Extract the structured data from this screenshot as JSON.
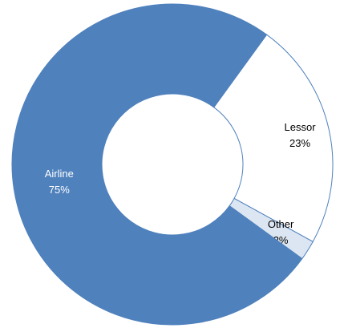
{
  "chart_data": {
    "type": "donut",
    "categories": [
      "Lessor",
      "Other",
      "Airline"
    ],
    "values": [
      23,
      2,
      75
    ],
    "value_labels": [
      "23%",
      "2%",
      "75%"
    ],
    "colors": [
      "#ffffff",
      "#dce6f2",
      "#4f81bd"
    ],
    "label_colors": [
      "#000000",
      "#000000",
      "#ffffff"
    ]
  }
}
